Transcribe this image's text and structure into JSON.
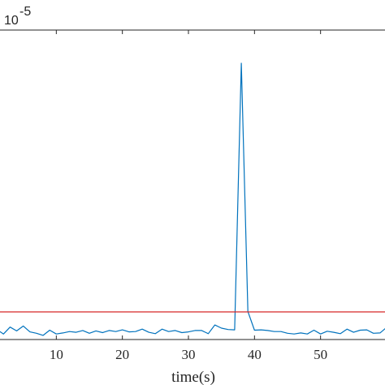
{
  "chart_data": {
    "type": "line",
    "xlabel": "time(s)",
    "ylabel": "",
    "y_exponent_base": "10",
    "y_exponent_power": "-5",
    "xlim": [
      0,
      60
    ],
    "x_ticks": [
      10,
      20,
      30,
      40,
      50
    ],
    "grid": false,
    "series": [
      {
        "color": "#0072BD",
        "x": [
          0,
          1,
          2,
          3,
          4,
          5,
          6,
          7,
          8,
          9,
          10,
          11,
          12,
          13,
          14,
          15,
          16,
          17,
          18,
          19,
          20,
          21,
          22,
          23,
          24,
          25,
          26,
          27,
          28,
          29,
          30,
          31,
          32,
          33,
          34,
          35,
          36,
          37,
          38,
          39,
          40,
          41,
          42,
          43,
          44,
          45,
          46,
          47,
          48,
          49,
          50,
          51,
          52,
          53,
          54,
          55,
          56,
          57,
          58,
          59,
          60
        ],
        "values": [
          2.3,
          2.9,
          1.6,
          3.6,
          2.5,
          3.9,
          2.2,
          1.8,
          1.2,
          2.7,
          1.6,
          1.9,
          2.3,
          2.1,
          2.6,
          1.8,
          2.5,
          2.0,
          2.6,
          2.3,
          2.8,
          2.2,
          2.3,
          3.0,
          2.1,
          1.7,
          3.0,
          2.3,
          2.6,
          2.0,
          2.2,
          2.6,
          2.6,
          1.7,
          4.2,
          3.3,
          2.9,
          2.8,
          80.0,
          8.1,
          2.7,
          2.8,
          2.6,
          2.3,
          2.3,
          1.8,
          1.6,
          1.9,
          1.6,
          2.7,
          1.6,
          2.4,
          2.1,
          1.7,
          3.0,
          2.1,
          2.7,
          2.8,
          1.8,
          1.9,
          3.5
        ]
      },
      {
        "color": "#D62728",
        "x": [
          0,
          60
        ],
        "values": [
          8.0,
          8.0
        ]
      }
    ]
  }
}
